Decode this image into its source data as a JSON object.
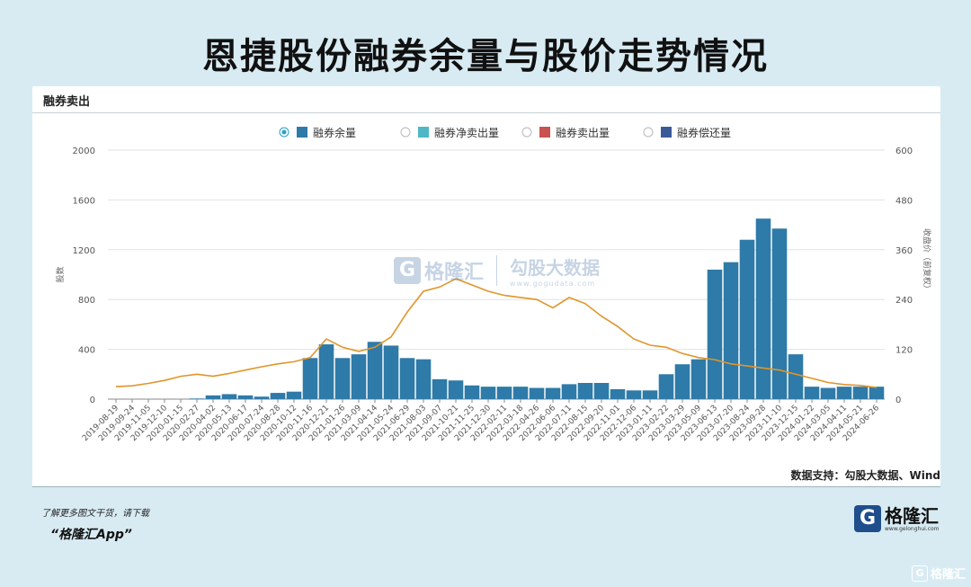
{
  "page": {
    "title": "恩捷股份融券余量与股价走势情况",
    "card_title": "融券卖出",
    "source": "数据支持：勾股大数据、Wind",
    "footer_note": "了解更多图文干货，请下载",
    "footer_app": "“格隆汇App”",
    "footer_logo_letter": "G",
    "footer_logo_text": "格隆汇",
    "footer_logo_url": "www.gelonghui.com",
    "corner_tag": "格隆汇",
    "watermark": {
      "letter": "G",
      "brand": "格隆汇",
      "name": "勾股大数据",
      "url": "www.gogudata.com"
    }
  },
  "chart_data": {
    "type": "bar",
    "legend": {
      "placement": "top-center",
      "items": [
        {
          "name": "融券余量",
          "color": "#2e7aa8",
          "selected": true
        },
        {
          "name": "融券净卖出量",
          "color": "#4fb8c4",
          "selected": false
        },
        {
          "name": "融券卖出量",
          "color": "#c85250",
          "selected": false
        },
        {
          "name": "融券偿还量",
          "color": "#3b5a9a",
          "selected": false
        }
      ]
    },
    "y_left": {
      "label": "股数",
      "ticks": [
        "0",
        "400",
        "800",
        "1200",
        "1600",
        "2000"
      ],
      "ylim": [
        0,
        2000
      ]
    },
    "y_right": {
      "label": "收盘价（前复权）",
      "ticks": [
        "0",
        "120",
        "240",
        "360",
        "480",
        "600"
      ],
      "ylim": [
        0,
        600
      ]
    },
    "x_ticks": [
      "2019-08-19",
      "2019-09-24",
      "2019-11-05",
      "2019-12-10",
      "2020-01-15",
      "2020-02-27",
      "2020-04-02",
      "2020-05-13",
      "2020-06-17",
      "2020-07-24",
      "2020-08-28",
      "2020-10-12",
      "2020-11-16",
      "2020-12-21",
      "2021-01-26",
      "2021-03-09",
      "2021-04-14",
      "2021-05-24",
      "2021-06-29",
      "2021-08-03",
      "2021-09-07",
      "2021-10-21",
      "2021-11-25",
      "2021-12-30",
      "2022-02-11",
      "2022-03-18",
      "2022-04-26",
      "2022-06-06",
      "2022-07-11",
      "2022-08-15",
      "2022-09-20",
      "2022-11-01",
      "2022-12-06",
      "2023-01-11",
      "2023-02-22",
      "2023-03-29",
      "2023-05-09",
      "2023-06-13",
      "2023-07-20",
      "2023-08-24",
      "2023-09-28",
      "2023-11-10",
      "2023-12-15",
      "2024-01-22",
      "2024-03-05",
      "2024-04-11",
      "2024-05-21",
      "2024-06-26"
    ],
    "series": [
      {
        "name": "融券余量",
        "type": "bar",
        "axis": "left",
        "color": "#2e7aa8",
        "x": [
          0,
          1,
          2,
          3,
          4,
          5,
          6,
          7,
          8,
          9,
          10,
          11,
          12,
          13,
          14,
          15,
          16,
          17,
          18,
          19,
          20,
          21,
          22,
          23,
          24,
          25,
          26,
          27,
          28,
          29,
          30,
          31,
          32,
          33,
          34,
          35,
          36,
          37,
          38,
          39,
          40,
          41,
          42,
          43,
          44,
          45,
          46,
          47
        ],
        "values": [
          0,
          0,
          0,
          0,
          0,
          5,
          30,
          40,
          30,
          20,
          50,
          60,
          330,
          440,
          330,
          360,
          460,
          430,
          330,
          320,
          160,
          150,
          110,
          100,
          100,
          100,
          90,
          90,
          120,
          130,
          130,
          80,
          70,
          70,
          200,
          280,
          320,
          1040,
          1100,
          1280,
          1450,
          1370,
          360,
          100,
          90,
          100,
          100,
          100
        ]
      },
      {
        "name": "收盘价（前复权）",
        "type": "line",
        "axis": "right",
        "color": "#e0952a",
        "x": [
          0,
          1,
          2,
          3,
          4,
          5,
          6,
          7,
          8,
          9,
          10,
          11,
          12,
          13,
          14,
          15,
          16,
          17,
          18,
          19,
          20,
          21,
          22,
          23,
          24,
          25,
          26,
          27,
          28,
          29,
          30,
          31,
          32,
          33,
          34,
          35,
          36,
          37,
          38,
          39,
          40,
          41,
          42,
          43,
          44,
          45,
          46,
          47
        ],
        "values": [
          30,
          32,
          38,
          45,
          55,
          60,
          55,
          62,
          70,
          78,
          85,
          90,
          100,
          145,
          125,
          115,
          125,
          150,
          210,
          260,
          270,
          290,
          275,
          260,
          250,
          245,
          240,
          220,
          245,
          230,
          200,
          175,
          145,
          130,
          125,
          110,
          100,
          95,
          85,
          80,
          75,
          70,
          60,
          50,
          40,
          35,
          33,
          28
        ]
      }
    ]
  }
}
